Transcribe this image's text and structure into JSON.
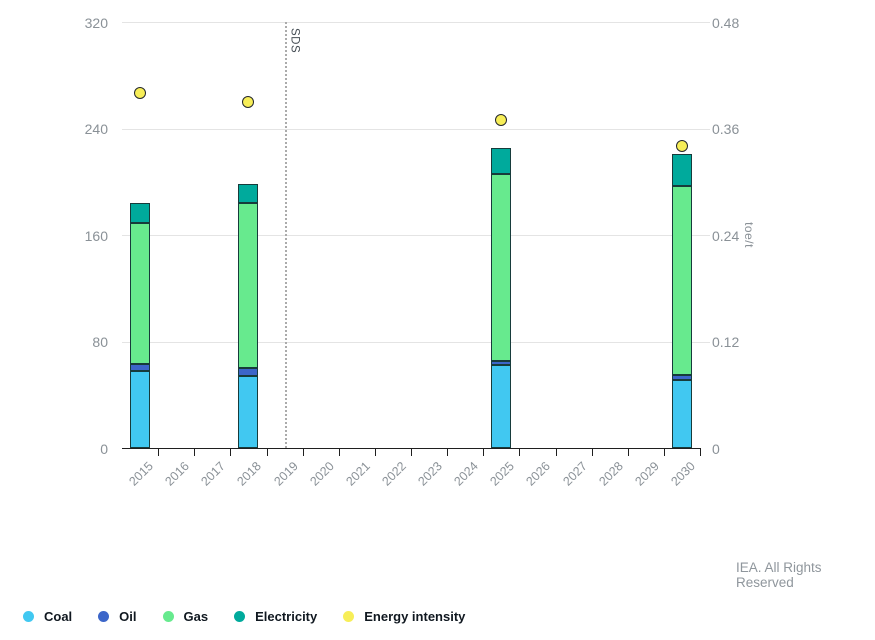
{
  "footer": {
    "credit": "IEA. All Rights Reserved"
  },
  "annotation": {
    "label": "SDS",
    "category": "2019"
  },
  "colors": {
    "grid": "#e4e4e4",
    "axis_line": "#1f1f1f",
    "axis_text": "#8a9197",
    "bar_outline": "#173b3b",
    "dot_outline": "#25282b",
    "legend_text": "#101820",
    "credit_text": "#8f969c"
  },
  "chart_data": {
    "type": "bar",
    "subtype": "stacked-bars-with-scatter-overlay",
    "title": "",
    "categories": [
      "2015",
      "2016",
      "2017",
      "2018",
      "2019",
      "2020",
      "2021",
      "2022",
      "2023",
      "2024",
      "2025",
      "2026",
      "2027",
      "2028",
      "2029",
      "2030"
    ],
    "bar_categories": [
      "2015",
      "2018",
      "2025",
      "2030"
    ],
    "series": [
      {
        "name": "Coal",
        "color": "#41c8f1",
        "values": [
          58,
          54,
          62,
          51
        ]
      },
      {
        "name": "Oil",
        "color": "#3c66c9",
        "values": [
          5,
          6,
          3,
          4
        ]
      },
      {
        "name": "Gas",
        "color": "#67ea8e",
        "values": [
          106,
          124,
          141,
          142
        ]
      },
      {
        "name": "Electricity",
        "color": "#00aa9c",
        "values": [
          15,
          14,
          19,
          24
        ]
      }
    ],
    "bar_totals": [
      184,
      198,
      225,
      221
    ],
    "scatter_series": {
      "name": "Energy intensity",
      "color": "#f7ee58",
      "axis": "right",
      "values": [
        0.4,
        0.39,
        0.37,
        0.34
      ]
    },
    "left_axis": {
      "ticks": [
        "0",
        "80",
        "160",
        "240",
        "320"
      ],
      "min": 0,
      "max": 320
    },
    "right_axis": {
      "ticks": [
        "0",
        "0.12",
        "0.24",
        "0.36",
        "0.48"
      ],
      "min": 0,
      "max": 0.48,
      "label": "toe/t"
    },
    "grid": true,
    "legend_position": "bottom-left"
  }
}
